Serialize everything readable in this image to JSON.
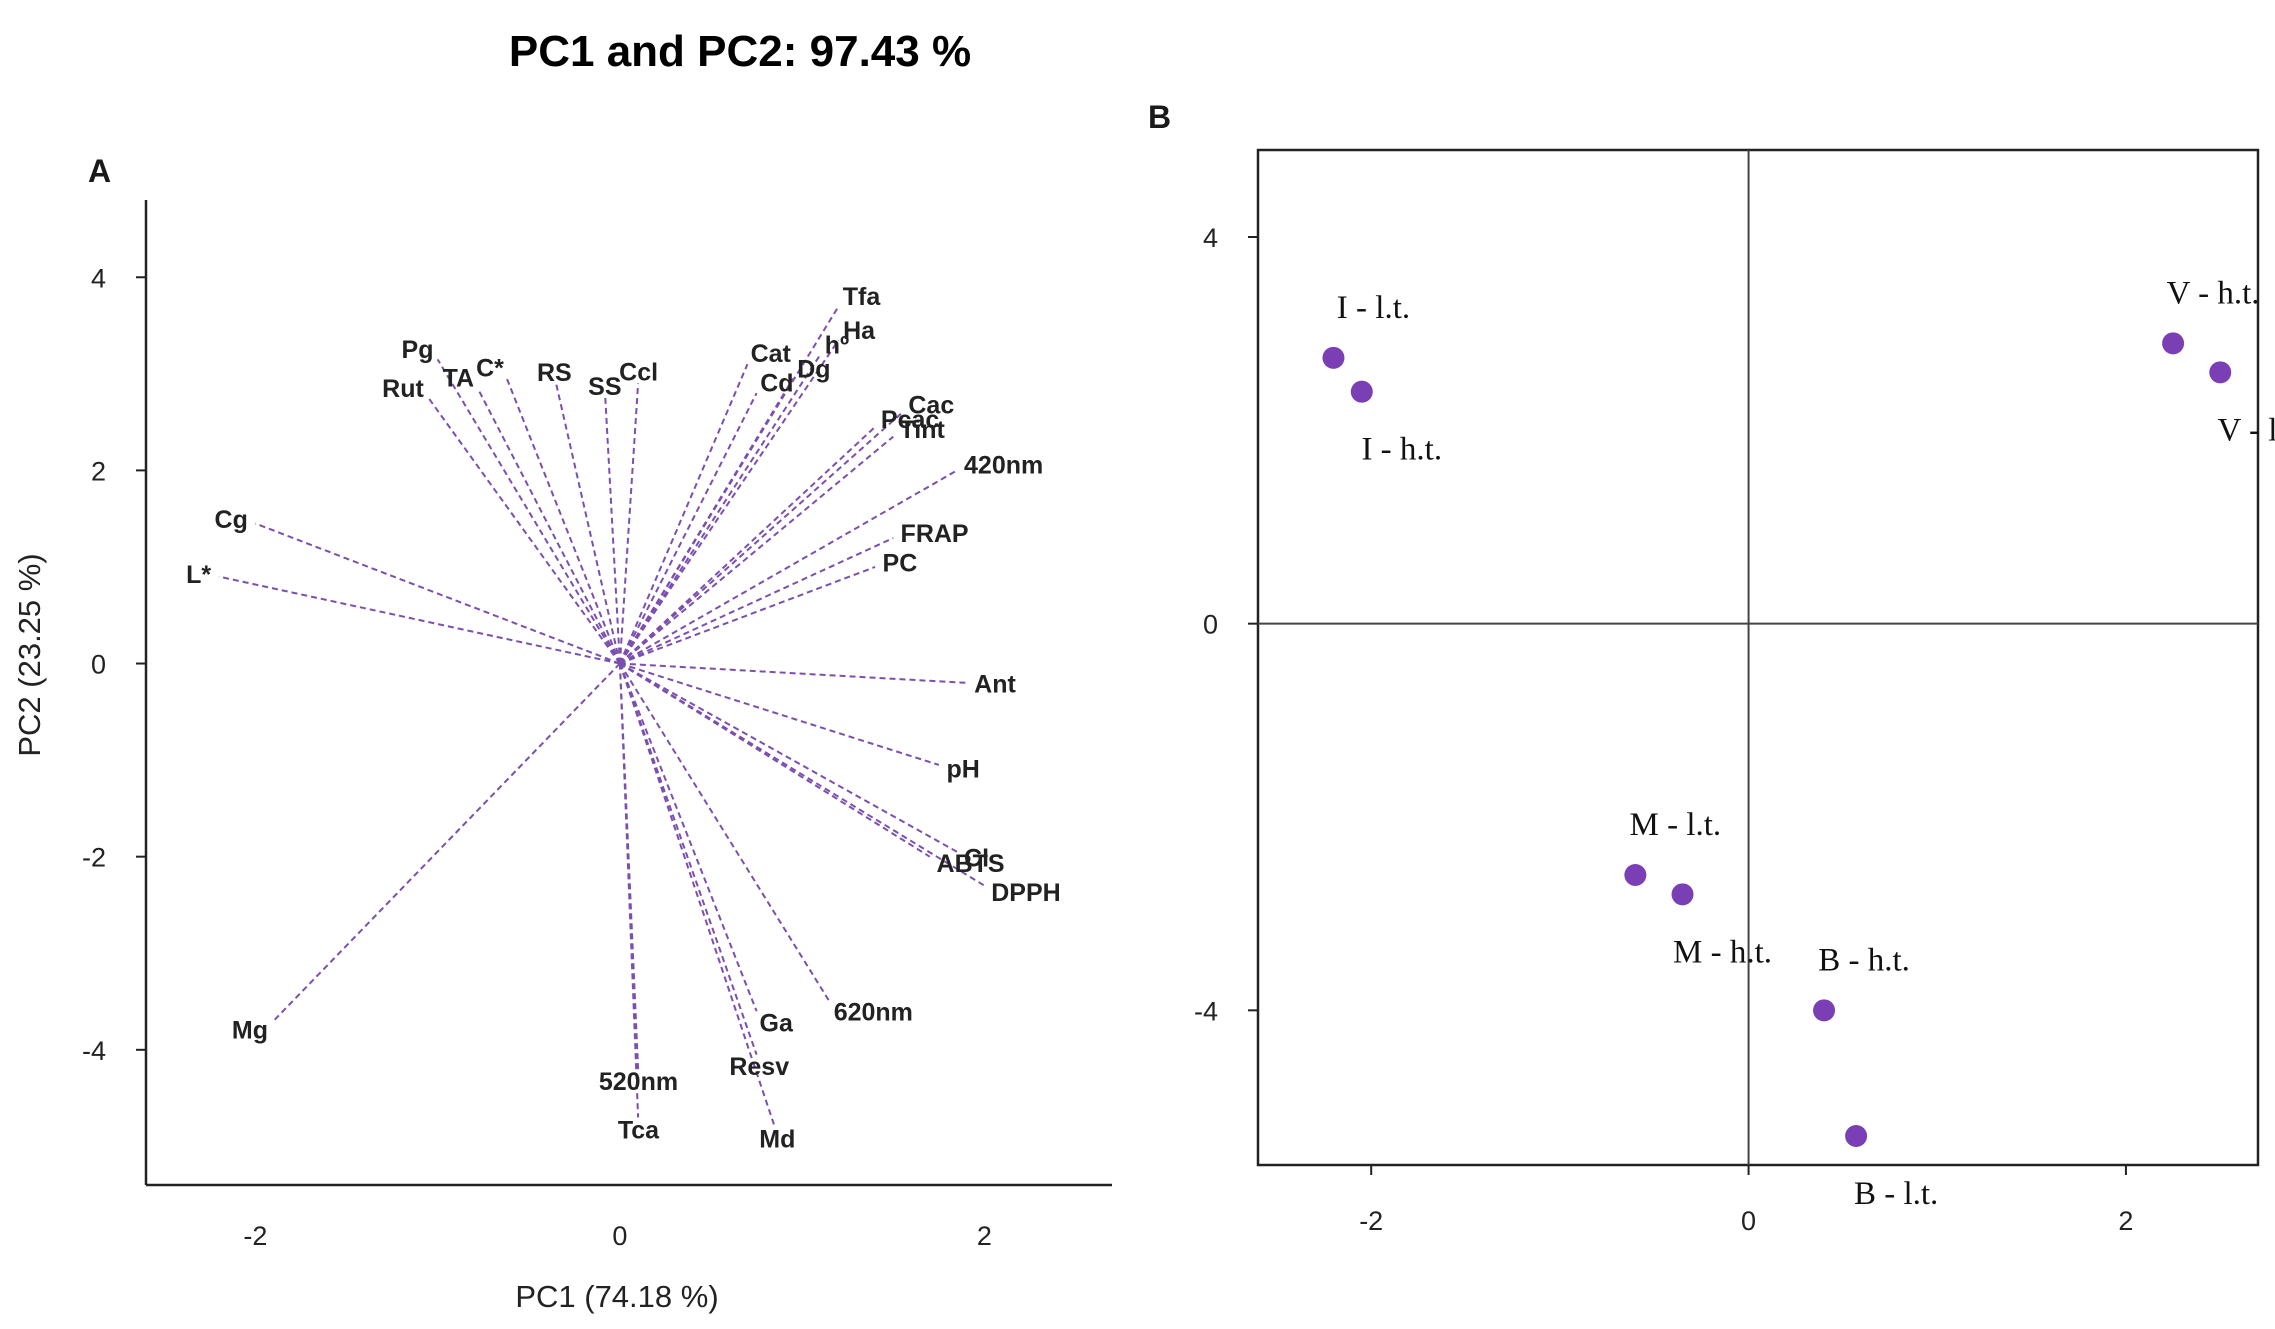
{
  "figure": {
    "title": "PC1 and PC2: 97.43 %",
    "panel_a_label": "A",
    "panel_b_label": "B"
  },
  "chart_data": [
    {
      "type": "scatter",
      "subtype": "biplot-loadings",
      "panel": "A",
      "xlabel": "PC1 (74.18 %)",
      "ylabel": "PC2 (23.25 %)",
      "xlim": [
        -2.6,
        2.7
      ],
      "ylim": [
        -5.4,
        4.8
      ],
      "xticks": [
        -2,
        0,
        2
      ],
      "yticks": [
        4,
        2,
        0,
        -2,
        -4
      ],
      "line_color": "#7b4fb0",
      "line_style": "dashed",
      "vectors": [
        {
          "name": "Tfa",
          "x": 1.2,
          "y": 3.7
        },
        {
          "name": "Ha",
          "x": 1.2,
          "y": 3.35
        },
        {
          "name": "hº",
          "x": 1.1,
          "y": 3.2
        },
        {
          "name": "Dg",
          "x": 0.95,
          "y": 2.95
        },
        {
          "name": "Cat",
          "x": 0.7,
          "y": 3.1
        },
        {
          "name": "Cd",
          "x": 0.75,
          "y": 2.8
        },
        {
          "name": "Cac",
          "x": 1.55,
          "y": 2.6
        },
        {
          "name": "Pcac",
          "x": 1.4,
          "y": 2.45
        },
        {
          "name": "Tint",
          "x": 1.5,
          "y": 2.35
        },
        {
          "name": "420nm",
          "x": 1.85,
          "y": 2.0
        },
        {
          "name": "FRAP",
          "x": 1.5,
          "y": 1.3
        },
        {
          "name": "PC",
          "x": 1.4,
          "y": 1.0
        },
        {
          "name": "Ccl",
          "x": 0.1,
          "y": 2.9
        },
        {
          "name": "SS",
          "x": -0.08,
          "y": 2.75
        },
        {
          "name": "RS",
          "x": -0.35,
          "y": 2.9
        },
        {
          "name": "C*",
          "x": -0.62,
          "y": 2.95
        },
        {
          "name": "TA",
          "x": -0.78,
          "y": 2.85
        },
        {
          "name": "Pg",
          "x": -1.0,
          "y": 3.15
        },
        {
          "name": "Rut",
          "x": -1.05,
          "y": 2.75
        },
        {
          "name": "Cg",
          "x": -2.0,
          "y": 1.45
        },
        {
          "name": "L*",
          "x": -2.2,
          "y": 0.9
        },
        {
          "name": "Ant",
          "x": 1.9,
          "y": -0.2
        },
        {
          "name": "pH",
          "x": 1.75,
          "y": -1.05
        },
        {
          "name": "Cl",
          "x": 1.85,
          "y": -1.95
        },
        {
          "name": "ABTS",
          "x": 1.7,
          "y": -2.0
        },
        {
          "name": "DPPH",
          "x": 2.0,
          "y": -2.3
        },
        {
          "name": "620nm",
          "x": 1.15,
          "y": -3.5
        },
        {
          "name": "Ga",
          "x": 0.75,
          "y": -3.6
        },
        {
          "name": "Resv",
          "x": 0.75,
          "y": -4.05
        },
        {
          "name": "Md",
          "x": 0.85,
          "y": -4.8
        },
        {
          "name": "520nm",
          "x": 0.1,
          "y": -4.2
        },
        {
          "name": "Tca",
          "x": 0.1,
          "y": -4.7
        },
        {
          "name": "Mg",
          "x": -1.9,
          "y": -3.7
        }
      ]
    },
    {
      "type": "scatter",
      "panel": "B",
      "xlabel": "",
      "ylabel": "",
      "xlim": [
        -2.6,
        2.7
      ],
      "ylim": [
        -5.6,
        4.9
      ],
      "xticks": [
        -2,
        0,
        2
      ],
      "yticks": [
        4,
        0,
        -4
      ],
      "point_color": "#7b3fb5",
      "points": [
        {
          "label": "I - l.t.",
          "x": -2.2,
          "y": 2.75
        },
        {
          "label": "I - h.t.",
          "x": -2.05,
          "y": 2.4
        },
        {
          "label": "V - h.t.",
          "x": 2.25,
          "y": 2.9
        },
        {
          "label": "V - l.t.",
          "x": 2.5,
          "y": 2.6
        },
        {
          "label": "M - l.t.",
          "x": -0.6,
          "y": -2.6
        },
        {
          "label": "M - h.t.",
          "x": -0.35,
          "y": -2.8
        },
        {
          "label": "B - h.t.",
          "x": 0.4,
          "y": -4.0
        },
        {
          "label": "B - l.t.",
          "x": 0.57,
          "y": -5.3
        }
      ]
    }
  ]
}
